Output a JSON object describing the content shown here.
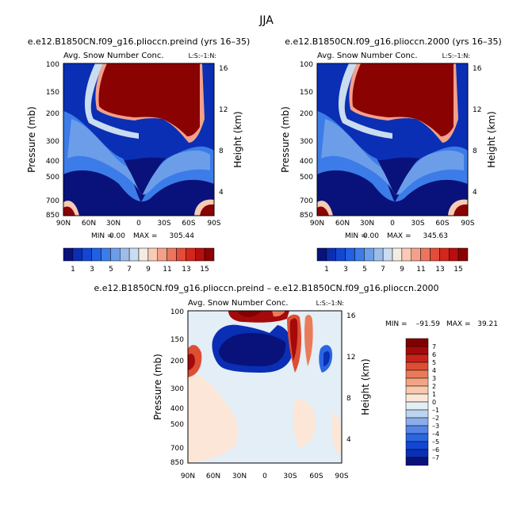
{
  "page": {
    "title": "JJA"
  },
  "colors": {
    "cb_scale_0_15": [
      "#08127a",
      "#0a2fb4",
      "#1247d6",
      "#2160e4",
      "#3c7ce8",
      "#6b9de9",
      "#9cbdea",
      "#cadcef",
      "#f4ece2",
      "#f9cbb4",
      "#f4a08a",
      "#ec765d",
      "#e34c38",
      "#d3261c",
      "#b70e0e",
      "#8a0202"
    ],
    "cb_scale_diff": [
      "#08127a",
      "#0a2fb4",
      "#1247d6",
      "#2b66e0",
      "#5584e6",
      "#8aaee9",
      "#bdd3ee",
      "#e4eef6",
      "#fbe6d8",
      "#f7c9ad",
      "#f2a584",
      "#ea7b59",
      "#de4e33",
      "#c8231a",
      "#a40a0a",
      "#820000"
    ]
  },
  "chart_data": [
    {
      "type": "heatmap",
      "title": "e.e12.B1850CN.f09_g16.plioccn.preind (yrs 16–35)",
      "variable_label": "Avg. Snow Number Conc.",
      "level_tag": "L:S:–1:N:",
      "xlabel": "",
      "ylabel": "Pressure (mb)",
      "ylabel_right": "Height (km)",
      "x_ticks": [
        "90N",
        "60N",
        "30N",
        "0",
        "30S",
        "60S",
        "90S"
      ],
      "y_ticks": [
        "100",
        "150",
        "200",
        "300",
        "400",
        "500",
        "700",
        "850"
      ],
      "y_ticks_right": [
        "16",
        "12",
        "8",
        "4"
      ],
      "min_label": "MIN =",
      "min_value": "0.00",
      "max_label": "MAX =",
      "max_value": "305.44",
      "colorbar_labels": [
        "1",
        "3",
        "5",
        "7",
        "9",
        "11",
        "13",
        "15"
      ]
    },
    {
      "type": "heatmap",
      "title": "e.e12.B1850CN.f09_g16.plioccn.2000 (yrs 16–35)",
      "variable_label": "Avg. Snow Number Conc.",
      "level_tag": "L:S:–1:N:",
      "xlabel": "",
      "ylabel": "Pressure (mb)",
      "ylabel_right": "Height (km)",
      "x_ticks": [
        "90N",
        "60N",
        "30N",
        "0",
        "30S",
        "60S",
        "90S"
      ],
      "y_ticks": [
        "100",
        "150",
        "200",
        "300",
        "400",
        "500",
        "700",
        "850"
      ],
      "y_ticks_right": [
        "16",
        "12",
        "8",
        "4"
      ],
      "min_label": "MIN =",
      "min_value": "0.00",
      "max_label": "MAX =",
      "max_value": "345.63",
      "colorbar_labels": [
        "1",
        "3",
        "5",
        "7",
        "9",
        "11",
        "13",
        "15"
      ]
    },
    {
      "type": "heatmap",
      "title": "e.e12.B1850CN.f09_g16.plioccn.preind – e.e12.B1850CN.f09_g16.plioccn.2000",
      "variable_label": "Avg. Snow Number Conc.",
      "level_tag": "L:S:–1:N:",
      "xlabel": "",
      "ylabel": "Pressure (mb)",
      "ylabel_right": "Height (km)",
      "x_ticks": [
        "90N",
        "60N",
        "30N",
        "0",
        "30S",
        "60S",
        "90S"
      ],
      "y_ticks": [
        "100",
        "150",
        "200",
        "300",
        "400",
        "500",
        "700",
        "850"
      ],
      "y_ticks_right": [
        "16",
        "12",
        "8",
        "4"
      ],
      "min_label": "MIN =",
      "min_value": "–91.59",
      "max_label": "MAX =",
      "max_value": "39.21",
      "colorbar_labels": [
        "7",
        "6",
        "5",
        "4",
        "3",
        "2",
        "1",
        "0",
        "–1",
        "–2",
        "–3",
        "–4",
        "–5",
        "–6",
        "–7"
      ]
    }
  ]
}
